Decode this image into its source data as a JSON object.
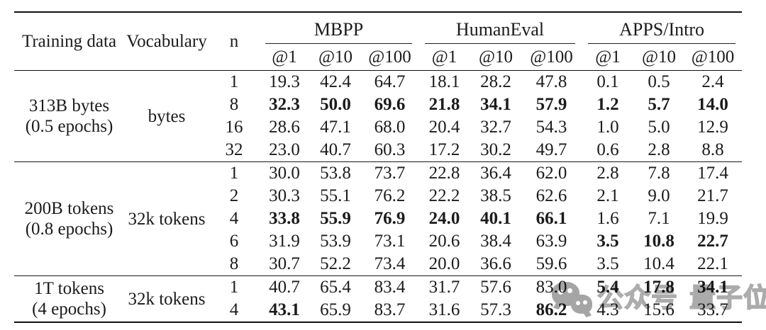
{
  "page": {
    "background": "#ffffff",
    "text_color": "#1b1b1b"
  },
  "table": {
    "headers": {
      "training_data": "Training data",
      "vocabulary": "Vocabulary",
      "n": "n",
      "groups": [
        {
          "label": "MBPP",
          "subcolumns": [
            "@1",
            "@10",
            "@100"
          ]
        },
        {
          "label": "HumanEval",
          "subcolumns": [
            "@1",
            "@10",
            "@100"
          ]
        },
        {
          "label": "APPS/Intro",
          "subcolumns": [
            "@1",
            "@10",
            "@100"
          ]
        }
      ]
    },
    "body_groups": [
      {
        "training_data_line1": "313B bytes",
        "training_data_line2": "(0.5 epochs)",
        "vocabulary": "bytes",
        "rows": [
          {
            "n": "1",
            "values": [
              "19.3",
              "42.4",
              "64.7",
              "18.1",
              "28.2",
              "47.8",
              "0.1",
              "0.5",
              "2.4"
            ],
            "bold": [
              0,
              0,
              0,
              0,
              0,
              0,
              0,
              0,
              0
            ]
          },
          {
            "n": "8",
            "values": [
              "32.3",
              "50.0",
              "69.6",
              "21.8",
              "34.1",
              "57.9",
              "1.2",
              "5.7",
              "14.0"
            ],
            "bold": [
              1,
              1,
              1,
              1,
              1,
              1,
              1,
              1,
              1
            ]
          },
          {
            "n": "16",
            "values": [
              "28.6",
              "47.1",
              "68.0",
              "20.4",
              "32.7",
              "54.3",
              "1.0",
              "5.0",
              "12.9"
            ],
            "bold": [
              0,
              0,
              0,
              0,
              0,
              0,
              0,
              0,
              0
            ]
          },
          {
            "n": "32",
            "values": [
              "23.0",
              "40.7",
              "60.3",
              "17.2",
              "30.2",
              "49.7",
              "0.6",
              "2.8",
              "8.8"
            ],
            "bold": [
              0,
              0,
              0,
              0,
              0,
              0,
              0,
              0,
              0
            ]
          }
        ]
      },
      {
        "training_data_line1": "200B tokens",
        "training_data_line2": "(0.8 epochs)",
        "vocabulary": "32k tokens",
        "rows": [
          {
            "n": "1",
            "values": [
              "30.0",
              "53.8",
              "73.7",
              "22.8",
              "36.4",
              "62.0",
              "2.8",
              "7.8",
              "17.4"
            ],
            "bold": [
              0,
              0,
              0,
              0,
              0,
              0,
              0,
              0,
              0
            ]
          },
          {
            "n": "2",
            "values": [
              "30.3",
              "55.1",
              "76.2",
              "22.2",
              "38.5",
              "62.6",
              "2.1",
              "9.0",
              "21.7"
            ],
            "bold": [
              0,
              0,
              0,
              0,
              0,
              0,
              0,
              0,
              0
            ]
          },
          {
            "n": "4",
            "values": [
              "33.8",
              "55.9",
              "76.9",
              "24.0",
              "40.1",
              "66.1",
              "1.6",
              "7.1",
              "19.9"
            ],
            "bold": [
              1,
              1,
              1,
              1,
              1,
              1,
              0,
              0,
              0
            ]
          },
          {
            "n": "6",
            "values": [
              "31.9",
              "53.9",
              "73.1",
              "20.6",
              "38.4",
              "63.9",
              "3.5",
              "10.8",
              "22.7"
            ],
            "bold": [
              0,
              0,
              0,
              0,
              0,
              0,
              1,
              1,
              1
            ]
          },
          {
            "n": "8",
            "values": [
              "30.7",
              "52.2",
              "73.4",
              "20.0",
              "36.6",
              "59.6",
              "3.5",
              "10.4",
              "22.1"
            ],
            "bold": [
              0,
              0,
              0,
              0,
              0,
              0,
              0,
              0,
              0
            ]
          }
        ]
      },
      {
        "training_data_line1": "1T tokens",
        "training_data_line2": "(4 epochs)",
        "vocabulary": "32k tokens",
        "rows": [
          {
            "n": "1",
            "values": [
              "40.7",
              "65.4",
              "83.4",
              "31.7",
              "57.6",
              "83.0",
              "5.4",
              "17.8",
              "34.1"
            ],
            "bold": [
              0,
              0,
              0,
              0,
              0,
              0,
              1,
              1,
              1
            ]
          },
          {
            "n": "4",
            "values": [
              "43.1",
              "65.9",
              "83.7",
              "31.6",
              "57.3",
              "86.2",
              "4.3",
              "15.6",
              "33.7"
            ],
            "bold": [
              1,
              0,
              0,
              0,
              0,
              1,
              0,
              0,
              0
            ]
          }
        ]
      }
    ]
  },
  "watermark": {
    "icon": "wechat-icon",
    "label_left": "公众号",
    "label_right": "量子位",
    "icon_color": "#a5a5a5",
    "text_color": "#cccccc"
  }
}
